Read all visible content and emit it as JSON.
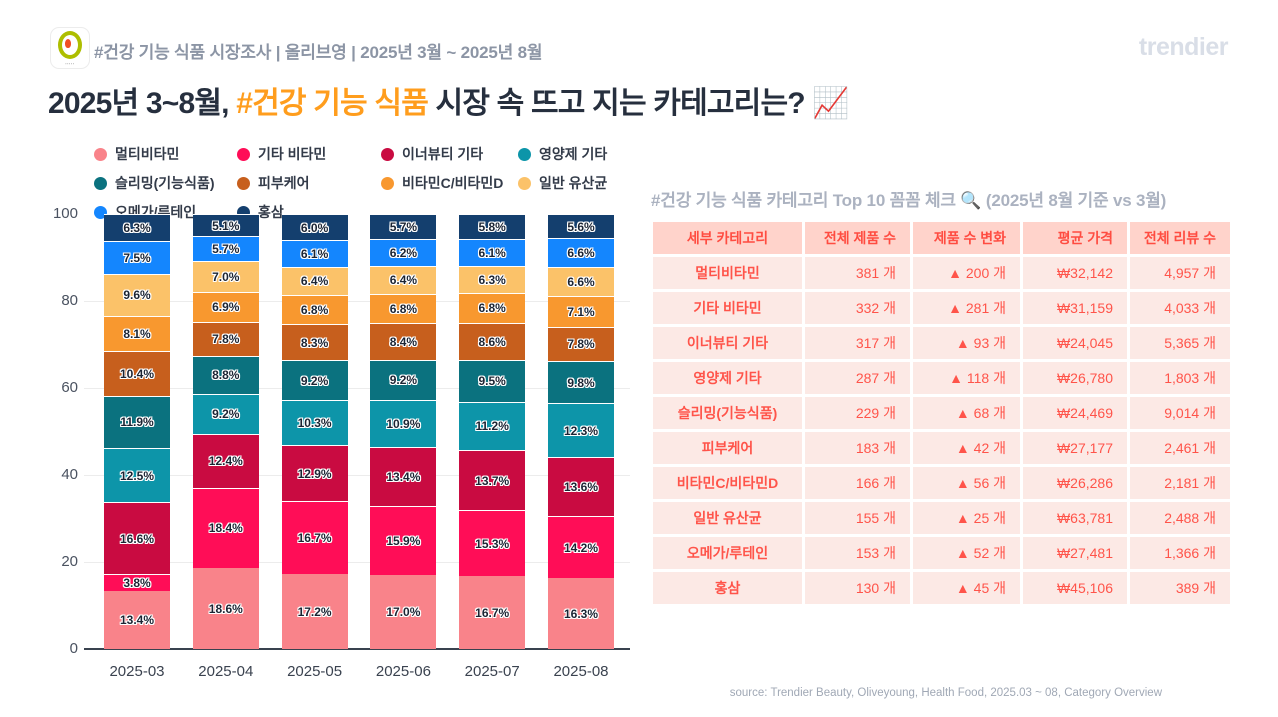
{
  "header": {
    "subtitle": "#건강 기능 식품 시장조사 | 올리브영 | 2025년 3월 ~ 2025년 8월",
    "brand": "trendier"
  },
  "title": {
    "prefix": "2025년 3~8월, ",
    "highlight": "#건강 기능 식품",
    "suffix": " 시장 속 뜨고 지는 카테고리는? 📈"
  },
  "chart_data": {
    "type": "bar",
    "stacked": true,
    "percent": true,
    "categories": [
      "2025-03",
      "2025-04",
      "2025-05",
      "2025-06",
      "2025-07",
      "2025-08"
    ],
    "series": [
      {
        "name": "멀티비타민",
        "color": "#f9838a",
        "values": [
          13.4,
          18.6,
          17.2,
          17.0,
          16.7,
          16.3
        ]
      },
      {
        "name": "기타 비타민",
        "color": "#ff0d57",
        "values": [
          3.8,
          18.4,
          16.7,
          15.9,
          15.3,
          14.2
        ]
      },
      {
        "name": "이너뷰티 기타",
        "color": "#c90b41",
        "values": [
          16.6,
          12.4,
          12.9,
          13.4,
          13.7,
          13.6
        ]
      },
      {
        "name": "영양제 기타",
        "color": "#0d95a9",
        "values": [
          12.5,
          9.2,
          10.3,
          10.9,
          11.2,
          12.3
        ]
      },
      {
        "name": "슬리밍(기능식품)",
        "color": "#0b727f",
        "values": [
          11.9,
          8.8,
          9.2,
          9.2,
          9.5,
          9.8
        ]
      },
      {
        "name": "피부케어",
        "color": "#c75f1d",
        "values": [
          10.4,
          7.8,
          8.3,
          8.4,
          8.6,
          7.8
        ]
      },
      {
        "name": "비타민C/비타민D",
        "color": "#f8982f",
        "values": [
          8.1,
          6.9,
          6.8,
          6.8,
          6.8,
          7.1
        ]
      },
      {
        "name": "일반 유산균",
        "color": "#fbc269",
        "values": [
          9.6,
          7.0,
          6.4,
          6.4,
          6.3,
          6.6
        ]
      },
      {
        "name": "오메가/루테인",
        "color": "#1486fe",
        "values": [
          7.5,
          5.7,
          6.1,
          6.2,
          6.1,
          6.6
        ]
      },
      {
        "name": "홍삼",
        "color": "#143f6e",
        "values": [
          6.3,
          5.1,
          6.0,
          5.7,
          5.8,
          5.6
        ]
      }
    ],
    "legend_order": [
      0,
      1,
      2,
      3,
      4,
      5,
      6,
      7,
      8,
      9
    ],
    "legend_position": "top",
    "ylim": [
      0,
      100
    ],
    "yticks": [
      0,
      20,
      40,
      60,
      80,
      100
    ],
    "grid": true,
    "value_suffix": "%"
  },
  "table": {
    "title": "#건강 기능 식품 카테고리 Top 10 꼼꼼 체크 🔍 (2025년 8월 기준 vs 3월)",
    "columns": [
      "세부 카테고리",
      "전체 제품 수",
      "제품 수 변화",
      "평균 가격",
      "전체 리뷰 수"
    ],
    "rows": [
      [
        "멀티비타민",
        "381 개",
        "▲ 200 개",
        "₩32,142",
        "4,957 개"
      ],
      [
        "기타 비타민",
        "332 개",
        "▲ 281 개",
        "₩31,159",
        "4,033 개"
      ],
      [
        "이너뷰티 기타",
        "317 개",
        "▲ 93 개",
        "₩24,045",
        "5,365 개"
      ],
      [
        "영양제 기타",
        "287 개",
        "▲ 118 개",
        "₩26,780",
        "1,803 개"
      ],
      [
        "슬리밍(기능식품)",
        "229 개",
        "▲ 68 개",
        "₩24,469",
        "9,014 개"
      ],
      [
        "피부케어",
        "183 개",
        "▲ 42 개",
        "₩27,177",
        "2,461 개"
      ],
      [
        "비타민C/비타민D",
        "166 개",
        "▲ 56 개",
        "₩26,286",
        "2,181 개"
      ],
      [
        "일반 유산균",
        "155 개",
        "▲ 25 개",
        "₩63,781",
        "2,488 개"
      ],
      [
        "오메가/루테인",
        "153 개",
        "▲ 52 개",
        "₩27,481",
        "1,366 개"
      ],
      [
        "홍삼",
        "130 개",
        "▲ 45 개",
        "₩45,106",
        "389 개"
      ]
    ]
  },
  "footer": {
    "source": "source: Trendier Beauty, Oliveyoung, Health Food, 2025.03 ~ 08, Category Overview"
  },
  "colors": {
    "title_text": "#262f3e",
    "title_highlight": "#ff9d1d",
    "table_header_bg": "#ffd3cb",
    "table_row_bg": "#fce9e5",
    "table_text": "#ff544a",
    "muted_text": "#abb2c0"
  }
}
